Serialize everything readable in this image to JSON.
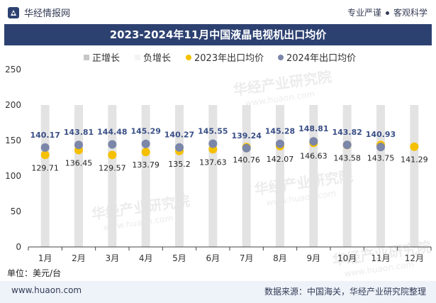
{
  "header": {
    "brand_name": "华经情报网",
    "tagline_left": "专业严谨",
    "tagline_right": "客观科学"
  },
  "footer": {
    "website": "www.huaon.com",
    "source": "数据来源：中国海关，华经产业研究院整理"
  },
  "watermark": {
    "text_cn": "华经产业研究院",
    "text_url": "www.huaon.com"
  },
  "colors": {
    "title_bg": "#2d4171",
    "bar_fill": "#e3e3e3",
    "series_2023": "#f5c000",
    "series_2024": "#7b86a8",
    "label_2024": "#3a4f86",
    "label_2023": "#222222"
  },
  "chart_data": {
    "type": "bar+scatter",
    "title": "2023-2024年11月中国液晶电视机出口均价",
    "unit_label": "单位：美元/台",
    "categories": [
      "1月",
      "2月",
      "3月",
      "4月",
      "5月",
      "6月",
      "7月",
      "8月",
      "9月",
      "10月",
      "11月",
      "12月"
    ],
    "ylim": [
      0,
      250
    ],
    "yticks": [
      0,
      50,
      100,
      150,
      200,
      250
    ],
    "legend": [
      "正增长",
      "负增长",
      "2023年出口均价",
      "2024年出口均价"
    ],
    "legend_position": "top",
    "bars": [
      200,
      200,
      200,
      200,
      200,
      200,
      200,
      200,
      200,
      200,
      200,
      200
    ],
    "series": [
      {
        "name": "2023年出口均价",
        "values": [
          129.71,
          136.45,
          129.57,
          133.79,
          135.2,
          137.63,
          140.76,
          142.07,
          146.63,
          143.58,
          143.75,
          141.29
        ]
      },
      {
        "name": "2024年出口均价",
        "values": [
          140.17,
          143.81,
          144.48,
          145.29,
          140.27,
          145.55,
          139.24,
          145.28,
          148.81,
          143.82,
          140.93,
          null
        ]
      }
    ],
    "labels_2024": [
      "140.17",
      "143.81",
      "144.48",
      "145.29",
      "140.27",
      "145.55",
      "139.24",
      "145.28",
      "148.81",
      "143.82",
      "140.93",
      ""
    ],
    "labels_2023": [
      "129.71",
      "136.45",
      "129.57",
      "133.79",
      "135.2",
      "137.63",
      "140.76",
      "142.07",
      "146.63",
      "143.58",
      "143.75",
      "141.29"
    ]
  }
}
